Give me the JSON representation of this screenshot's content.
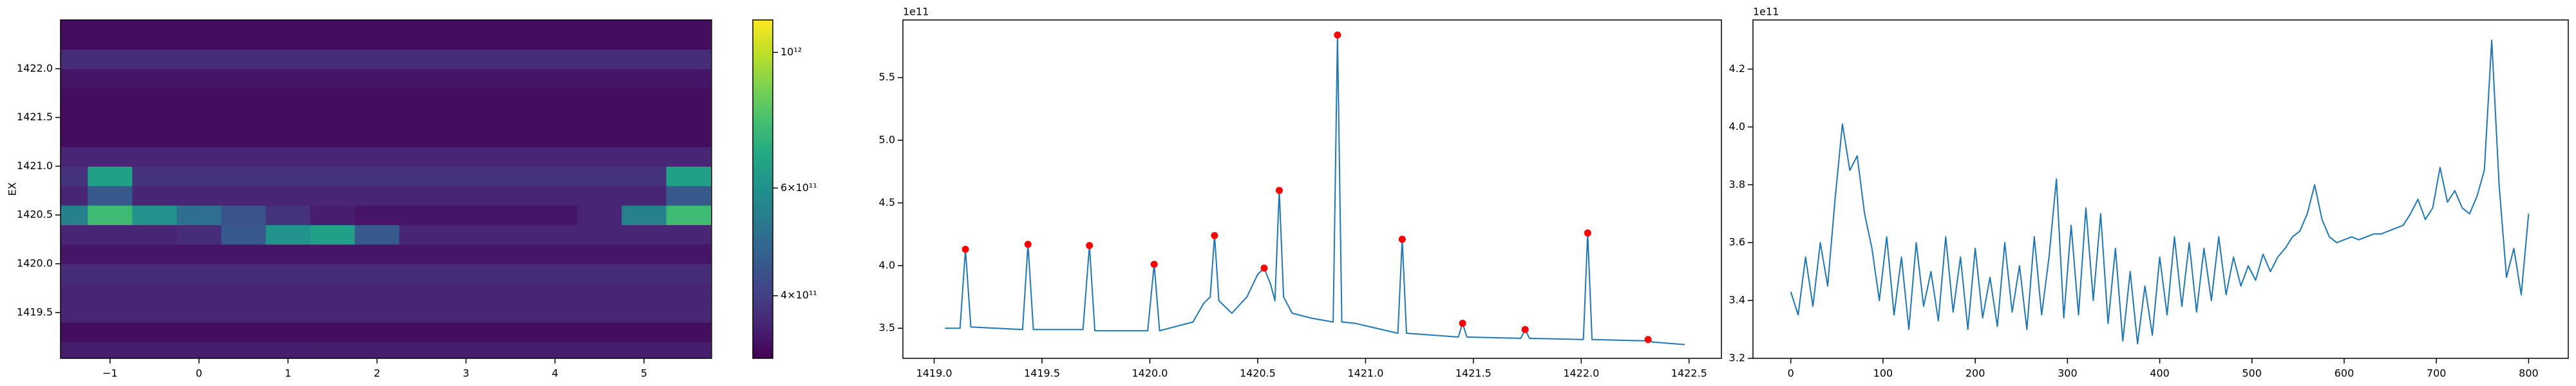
{
  "chart_data": [
    {
      "type": "heatmap",
      "ylabel": "EX",
      "x": [
        -1.5,
        -1.0,
        -0.5,
        0.0,
        0.5,
        1.0,
        1.5,
        2.0,
        2.5,
        3.0,
        3.5,
        4.0,
        4.5,
        5.0,
        5.5
      ],
      "y": [
        1419.1,
        1419.3,
        1419.5,
        1419.7,
        1419.9,
        1420.1,
        1420.3,
        1420.5,
        1420.7,
        1420.9,
        1421.1,
        1421.3,
        1421.5,
        1421.7,
        1421.9,
        1422.1,
        1422.3,
        1422.5
      ],
      "z": [
        [
          350000000000.0,
          350000000000.0,
          350000000000.0,
          350000000000.0,
          350000000000.0,
          350000000000.0,
          350000000000.0,
          350000000000.0,
          350000000000.0,
          350000000000.0,
          350000000000.0,
          350000000000.0,
          350000000000.0,
          350000000000.0,
          350000000000.0
        ],
        [
          330000000000.0,
          330000000000.0,
          330000000000.0,
          330000000000.0,
          330000000000.0,
          330000000000.0,
          330000000000.0,
          330000000000.0,
          330000000000.0,
          330000000000.0,
          330000000000.0,
          330000000000.0,
          330000000000.0,
          330000000000.0,
          330000000000.0
        ],
        [
          360000000000.0,
          360000000000.0,
          360000000000.0,
          360000000000.0,
          360000000000.0,
          360000000000.0,
          360000000000.0,
          360000000000.0,
          360000000000.0,
          360000000000.0,
          360000000000.0,
          360000000000.0,
          360000000000.0,
          360000000000.0,
          360000000000.0
        ],
        [
          360000000000.0,
          360000000000.0,
          360000000000.0,
          360000000000.0,
          360000000000.0,
          360000000000.0,
          360000000000.0,
          360000000000.0,
          360000000000.0,
          360000000000.0,
          360000000000.0,
          360000000000.0,
          360000000000.0,
          360000000000.0,
          360000000000.0
        ],
        [
          370000000000.0,
          370000000000.0,
          370000000000.0,
          370000000000.0,
          370000000000.0,
          370000000000.0,
          370000000000.0,
          370000000000.0,
          370000000000.0,
          370000000000.0,
          370000000000.0,
          370000000000.0,
          370000000000.0,
          370000000000.0,
          370000000000.0
        ],
        [
          340000000000.0,
          340000000000.0,
          340000000000.0,
          340000000000.0,
          340000000000.0,
          340000000000.0,
          340000000000.0,
          340000000000.0,
          340000000000.0,
          340000000000.0,
          340000000000.0,
          340000000000.0,
          340000000000.0,
          340000000000.0,
          340000000000.0
        ],
        [
          360000000000.0,
          360000000000.0,
          360000000000.0,
          370000000000.0,
          450000000000.0,
          600000000000.0,
          650000000000.0,
          450000000000.0,
          360000000000.0,
          360000000000.0,
          360000000000.0,
          360000000000.0,
          360000000000.0,
          360000000000.0,
          360000000000.0
        ],
        [
          550000000000.0,
          750000000000.0,
          600000000000.0,
          500000000000.0,
          440000000000.0,
          380000000000.0,
          350000000000.0,
          340000000000.0,
          340000000000.0,
          340000000000.0,
          340000000000.0,
          340000000000.0,
          360000000000.0,
          550000000000.0,
          750000000000.0
        ],
        [
          360000000000.0,
          450000000000.0,
          360000000000.0,
          360000000000.0,
          360000000000.0,
          360000000000.0,
          360000000000.0,
          360000000000.0,
          360000000000.0,
          360000000000.0,
          360000000000.0,
          360000000000.0,
          360000000000.0,
          360000000000.0,
          450000000000.0
        ],
        [
          380000000000.0,
          650000000000.0,
          380000000000.0,
          380000000000.0,
          380000000000.0,
          380000000000.0,
          380000000000.0,
          380000000000.0,
          380000000000.0,
          380000000000.0,
          380000000000.0,
          380000000000.0,
          380000000000.0,
          380000000000.0,
          650000000000.0
        ],
        [
          360000000000.0,
          360000000000.0,
          360000000000.0,
          360000000000.0,
          360000000000.0,
          360000000000.0,
          360000000000.0,
          360000000000.0,
          360000000000.0,
          360000000000.0,
          360000000000.0,
          360000000000.0,
          360000000000.0,
          360000000000.0,
          360000000000.0
        ],
        [
          330000000000.0,
          330000000000.0,
          330000000000.0,
          330000000000.0,
          330000000000.0,
          330000000000.0,
          330000000000.0,
          330000000000.0,
          330000000000.0,
          330000000000.0,
          330000000000.0,
          330000000000.0,
          330000000000.0,
          330000000000.0,
          330000000000.0
        ],
        [
          330000000000.0,
          330000000000.0,
          330000000000.0,
          330000000000.0,
          330000000000.0,
          330000000000.0,
          330000000000.0,
          330000000000.0,
          330000000000.0,
          330000000000.0,
          330000000000.0,
          330000000000.0,
          330000000000.0,
          330000000000.0,
          330000000000.0
        ],
        [
          330000000000.0,
          330000000000.0,
          330000000000.0,
          330000000000.0,
          330000000000.0,
          330000000000.0,
          330000000000.0,
          330000000000.0,
          330000000000.0,
          330000000000.0,
          330000000000.0,
          330000000000.0,
          330000000000.0,
          330000000000.0,
          330000000000.0
        ],
        [
          340000000000.0,
          340000000000.0,
          340000000000.0,
          340000000000.0,
          340000000000.0,
          340000000000.0,
          340000000000.0,
          340000000000.0,
          340000000000.0,
          340000000000.0,
          340000000000.0,
          340000000000.0,
          340000000000.0,
          340000000000.0,
          340000000000.0
        ],
        [
          370000000000.0,
          370000000000.0,
          370000000000.0,
          370000000000.0,
          370000000000.0,
          370000000000.0,
          370000000000.0,
          370000000000.0,
          370000000000.0,
          370000000000.0,
          370000000000.0,
          370000000000.0,
          370000000000.0,
          370000000000.0,
          370000000000.0
        ],
        [
          330000000000.0,
          330000000000.0,
          330000000000.0,
          330000000000.0,
          330000000000.0,
          330000000000.0,
          330000000000.0,
          330000000000.0,
          330000000000.0,
          330000000000.0,
          330000000000.0,
          330000000000.0,
          330000000000.0,
          330000000000.0,
          330000000000.0
        ],
        [
          330000000000.0,
          330000000000.0,
          330000000000.0,
          330000000000.0,
          330000000000.0,
          330000000000.0,
          330000000000.0,
          330000000000.0,
          330000000000.0,
          330000000000.0,
          330000000000.0,
          330000000000.0,
          330000000000.0,
          330000000000.0,
          330000000000.0
        ]
      ],
      "colormap": "viridis",
      "zscale": "log",
      "zlim": [
        316000000000.0,
        1130000000000.0
      ],
      "zticks": [
        {
          "value": 400000000000.0,
          "label": "4×10¹¹"
        },
        {
          "value": 600000000000.0,
          "label": "6×10¹¹"
        },
        {
          "value": 1000000000000.0,
          "label": "10¹²"
        }
      ],
      "xlim": [
        -1.556,
        5.76
      ],
      "xticks": [
        {
          "value": -1,
          "label": "−1"
        },
        0,
        1,
        2,
        3,
        4,
        5
      ],
      "ylim": [
        1419.03,
        1422.5
      ],
      "yticks": [
        1419.5,
        {
          "value": 1420,
          "label": "1420.0"
        },
        1420.5,
        {
          "value": 1421,
          "label": "1421.0"
        },
        1421.5,
        {
          "value": 1422,
          "label": "1422.0"
        }
      ]
    },
    {
      "type": "line",
      "offset_text": "1e11",
      "series": [
        {
          "type": "line",
          "color": "#1f77b4",
          "x": [
            1419.05,
            1419.12,
            1419.145,
            1419.17,
            1419.41,
            1419.435,
            1419.46,
            1419.69,
            1419.72,
            1419.745,
            1419.99,
            1420.02,
            1420.045,
            1420.2,
            1420.25,
            1420.28,
            1420.3,
            1420.32,
            1420.38,
            1420.45,
            1420.5,
            1420.53,
            1420.56,
            1420.58,
            1420.6,
            1420.62,
            1420.66,
            1420.75,
            1420.85,
            1420.87,
            1420.89,
            1420.95,
            1421.05,
            1421.15,
            1421.17,
            1421.19,
            1421.43,
            1421.45,
            1421.47,
            1421.72,
            1421.74,
            1421.76,
            1422.01,
            1422.03,
            1422.05,
            1422.29,
            1422.31,
            1422.33,
            1422.48
          ],
          "values": [
            3.5,
            3.5,
            4.13,
            3.51,
            3.49,
            4.17,
            3.49,
            3.49,
            4.16,
            3.48,
            3.48,
            4.01,
            3.48,
            3.55,
            3.7,
            3.75,
            4.24,
            3.72,
            3.62,
            3.75,
            3.93,
            3.98,
            3.85,
            3.72,
            4.6,
            3.75,
            3.62,
            3.58,
            3.55,
            5.84,
            3.55,
            3.54,
            3.5,
            3.46,
            4.21,
            3.46,
            3.43,
            3.54,
            3.43,
            3.42,
            3.49,
            3.42,
            3.41,
            4.26,
            3.41,
            3.4,
            3.41,
            3.39,
            3.37
          ]
        },
        {
          "type": "scatter",
          "color": "#ff0000",
          "x": [
            1419.145,
            1419.435,
            1419.72,
            1420.02,
            1420.3,
            1420.53,
            1420.6,
            1420.87,
            1421.17,
            1421.45,
            1421.74,
            1422.03,
            1422.31
          ],
          "values": [
            4.13,
            4.17,
            4.16,
            4.01,
            4.24,
            3.98,
            4.6,
            5.84,
            4.21,
            3.54,
            3.49,
            4.26,
            3.41
          ]
        }
      ],
      "xlim": [
        1418.855,
        1422.65
      ],
      "xticks": [
        {
          "value": 1419,
          "label": "1419.0"
        },
        1419.5,
        {
          "value": 1420,
          "label": "1420.0"
        },
        1420.5,
        {
          "value": 1421,
          "label": "1421.0"
        },
        1421.5,
        {
          "value": 1422,
          "label": "1422.0"
        },
        1422.5
      ],
      "ylim": [
        3.26,
        5.96
      ],
      "yticks": [
        3.5,
        {
          "value": 4,
          "label": "4.0"
        },
        4.5,
        {
          "value": 5,
          "label": "5.0"
        },
        5.5
      ]
    },
    {
      "type": "line",
      "offset_text": "1e11",
      "series": [
        {
          "type": "line",
          "color": "#1f77b4",
          "x": [
            0,
            8,
            16,
            24,
            32,
            40,
            48,
            56,
            64,
            72,
            80,
            88,
            96,
            104,
            112,
            120,
            128,
            136,
            144,
            152,
            160,
            168,
            176,
            184,
            192,
            200,
            208,
            216,
            224,
            232,
            240,
            248,
            256,
            264,
            272,
            280,
            288,
            296,
            304,
            312,
            320,
            328,
            336,
            344,
            352,
            360,
            368,
            376,
            384,
            392,
            400,
            408,
            416,
            424,
            432,
            440,
            448,
            456,
            464,
            472,
            480,
            488,
            496,
            504,
            512,
            520,
            528,
            536,
            544,
            552,
            560,
            568,
            576,
            584,
            592,
            600,
            608,
            616,
            624,
            632,
            640,
            648,
            656,
            664,
            672,
            680,
            688,
            696,
            704,
            712,
            720,
            728,
            736,
            744,
            752,
            760,
            768,
            776,
            784,
            792,
            800
          ],
          "values": [
            3.43,
            3.35,
            3.55,
            3.38,
            3.6,
            3.45,
            3.75,
            4.01,
            3.85,
            3.9,
            3.7,
            3.58,
            3.4,
            3.62,
            3.35,
            3.55,
            3.3,
            3.6,
            3.38,
            3.5,
            3.33,
            3.62,
            3.36,
            3.55,
            3.3,
            3.58,
            3.34,
            3.48,
            3.31,
            3.6,
            3.36,
            3.52,
            3.3,
            3.62,
            3.35,
            3.55,
            3.82,
            3.34,
            3.66,
            3.35,
            3.72,
            3.4,
            3.7,
            3.32,
            3.58,
            3.26,
            3.5,
            3.25,
            3.45,
            3.28,
            3.55,
            3.35,
            3.62,
            3.38,
            3.6,
            3.36,
            3.58,
            3.4,
            3.62,
            3.42,
            3.55,
            3.45,
            3.52,
            3.47,
            3.56,
            3.5,
            3.55,
            3.58,
            3.62,
            3.64,
            3.7,
            3.8,
            3.68,
            3.62,
            3.6,
            3.61,
            3.62,
            3.61,
            3.62,
            3.63,
            3.63,
            3.64,
            3.65,
            3.66,
            3.7,
            3.75,
            3.68,
            3.72,
            3.86,
            3.74,
            3.78,
            3.72,
            3.7,
            3.76,
            3.85,
            4.3,
            3.8,
            3.48,
            3.58,
            3.42,
            3.7
          ]
        }
      ],
      "xlim": [
        -41,
        843
      ],
      "xticks": [
        0,
        100,
        200,
        300,
        400,
        500,
        600,
        700,
        800
      ],
      "ylim": [
        3.2,
        4.37
      ],
      "yticks": [
        3.2,
        3.4,
        3.6,
        3.8,
        {
          "value": 4,
          "label": "4.0"
        },
        4.2
      ]
    }
  ]
}
